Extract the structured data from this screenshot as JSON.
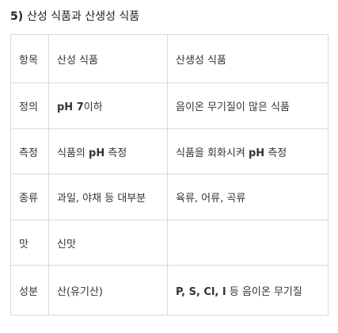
{
  "title": {
    "number": "5)",
    "text": "산성 식품과 산생성 식품"
  },
  "table": {
    "headers": [
      "항목",
      "산성 식품",
      "산생성 식품"
    ],
    "rows": [
      {
        "item": "정의",
        "acid": {
          "pre": "",
          "bold": "pH 7",
          "post": "이하"
        },
        "acid_forming": {
          "pre": "음이온 무기질이 많은 식품",
          "bold": "",
          "post": ""
        }
      },
      {
        "item": "측정",
        "acid": {
          "pre": "식품의 ",
          "bold": "pH",
          "post": " 측정"
        },
        "acid_forming": {
          "pre": "식품을 회화시켜 ",
          "bold": "pH",
          "post": " 측정"
        }
      },
      {
        "item": "종류",
        "acid": {
          "pre": "과일, 야채 등 대부분",
          "bold": "",
          "post": ""
        },
        "acid_forming": {
          "pre": "육류, 어류, 곡류",
          "bold": "",
          "post": ""
        }
      },
      {
        "item": "맛",
        "acid": {
          "pre": "신맛",
          "bold": "",
          "post": ""
        },
        "acid_forming": {
          "pre": "",
          "bold": "",
          "post": ""
        }
      },
      {
        "item": "성분",
        "acid": {
          "pre": "산(유기산)",
          "bold": "",
          "post": ""
        },
        "acid_forming": {
          "pre": "",
          "bold": "P, S, Cl, I",
          "post": " 등 음이온 무기질"
        }
      }
    ]
  }
}
